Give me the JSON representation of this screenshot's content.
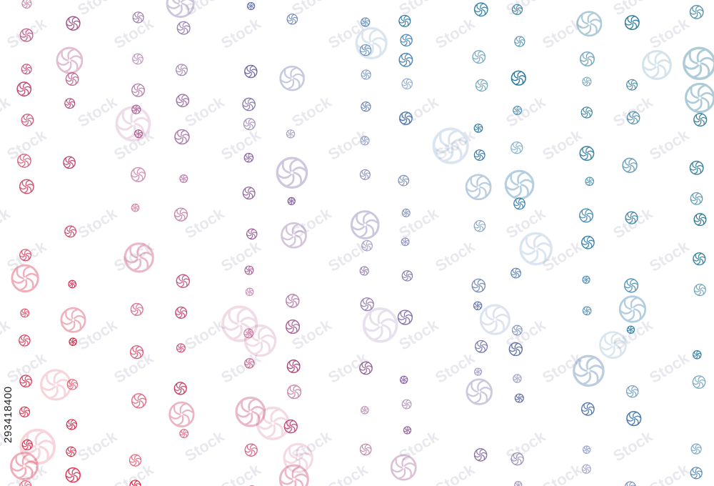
{
  "image": {
    "description_icon": "swirl-circle-icon",
    "background_color": "#ffffff",
    "palette": [
      "#d81b3c",
      "#c03a6b",
      "#8e5a9a",
      "#5a6aa8",
      "#2a7aa8",
      "#1a6e8e"
    ],
    "watermark_text": "Stock",
    "stock_id": "293418400"
  }
}
